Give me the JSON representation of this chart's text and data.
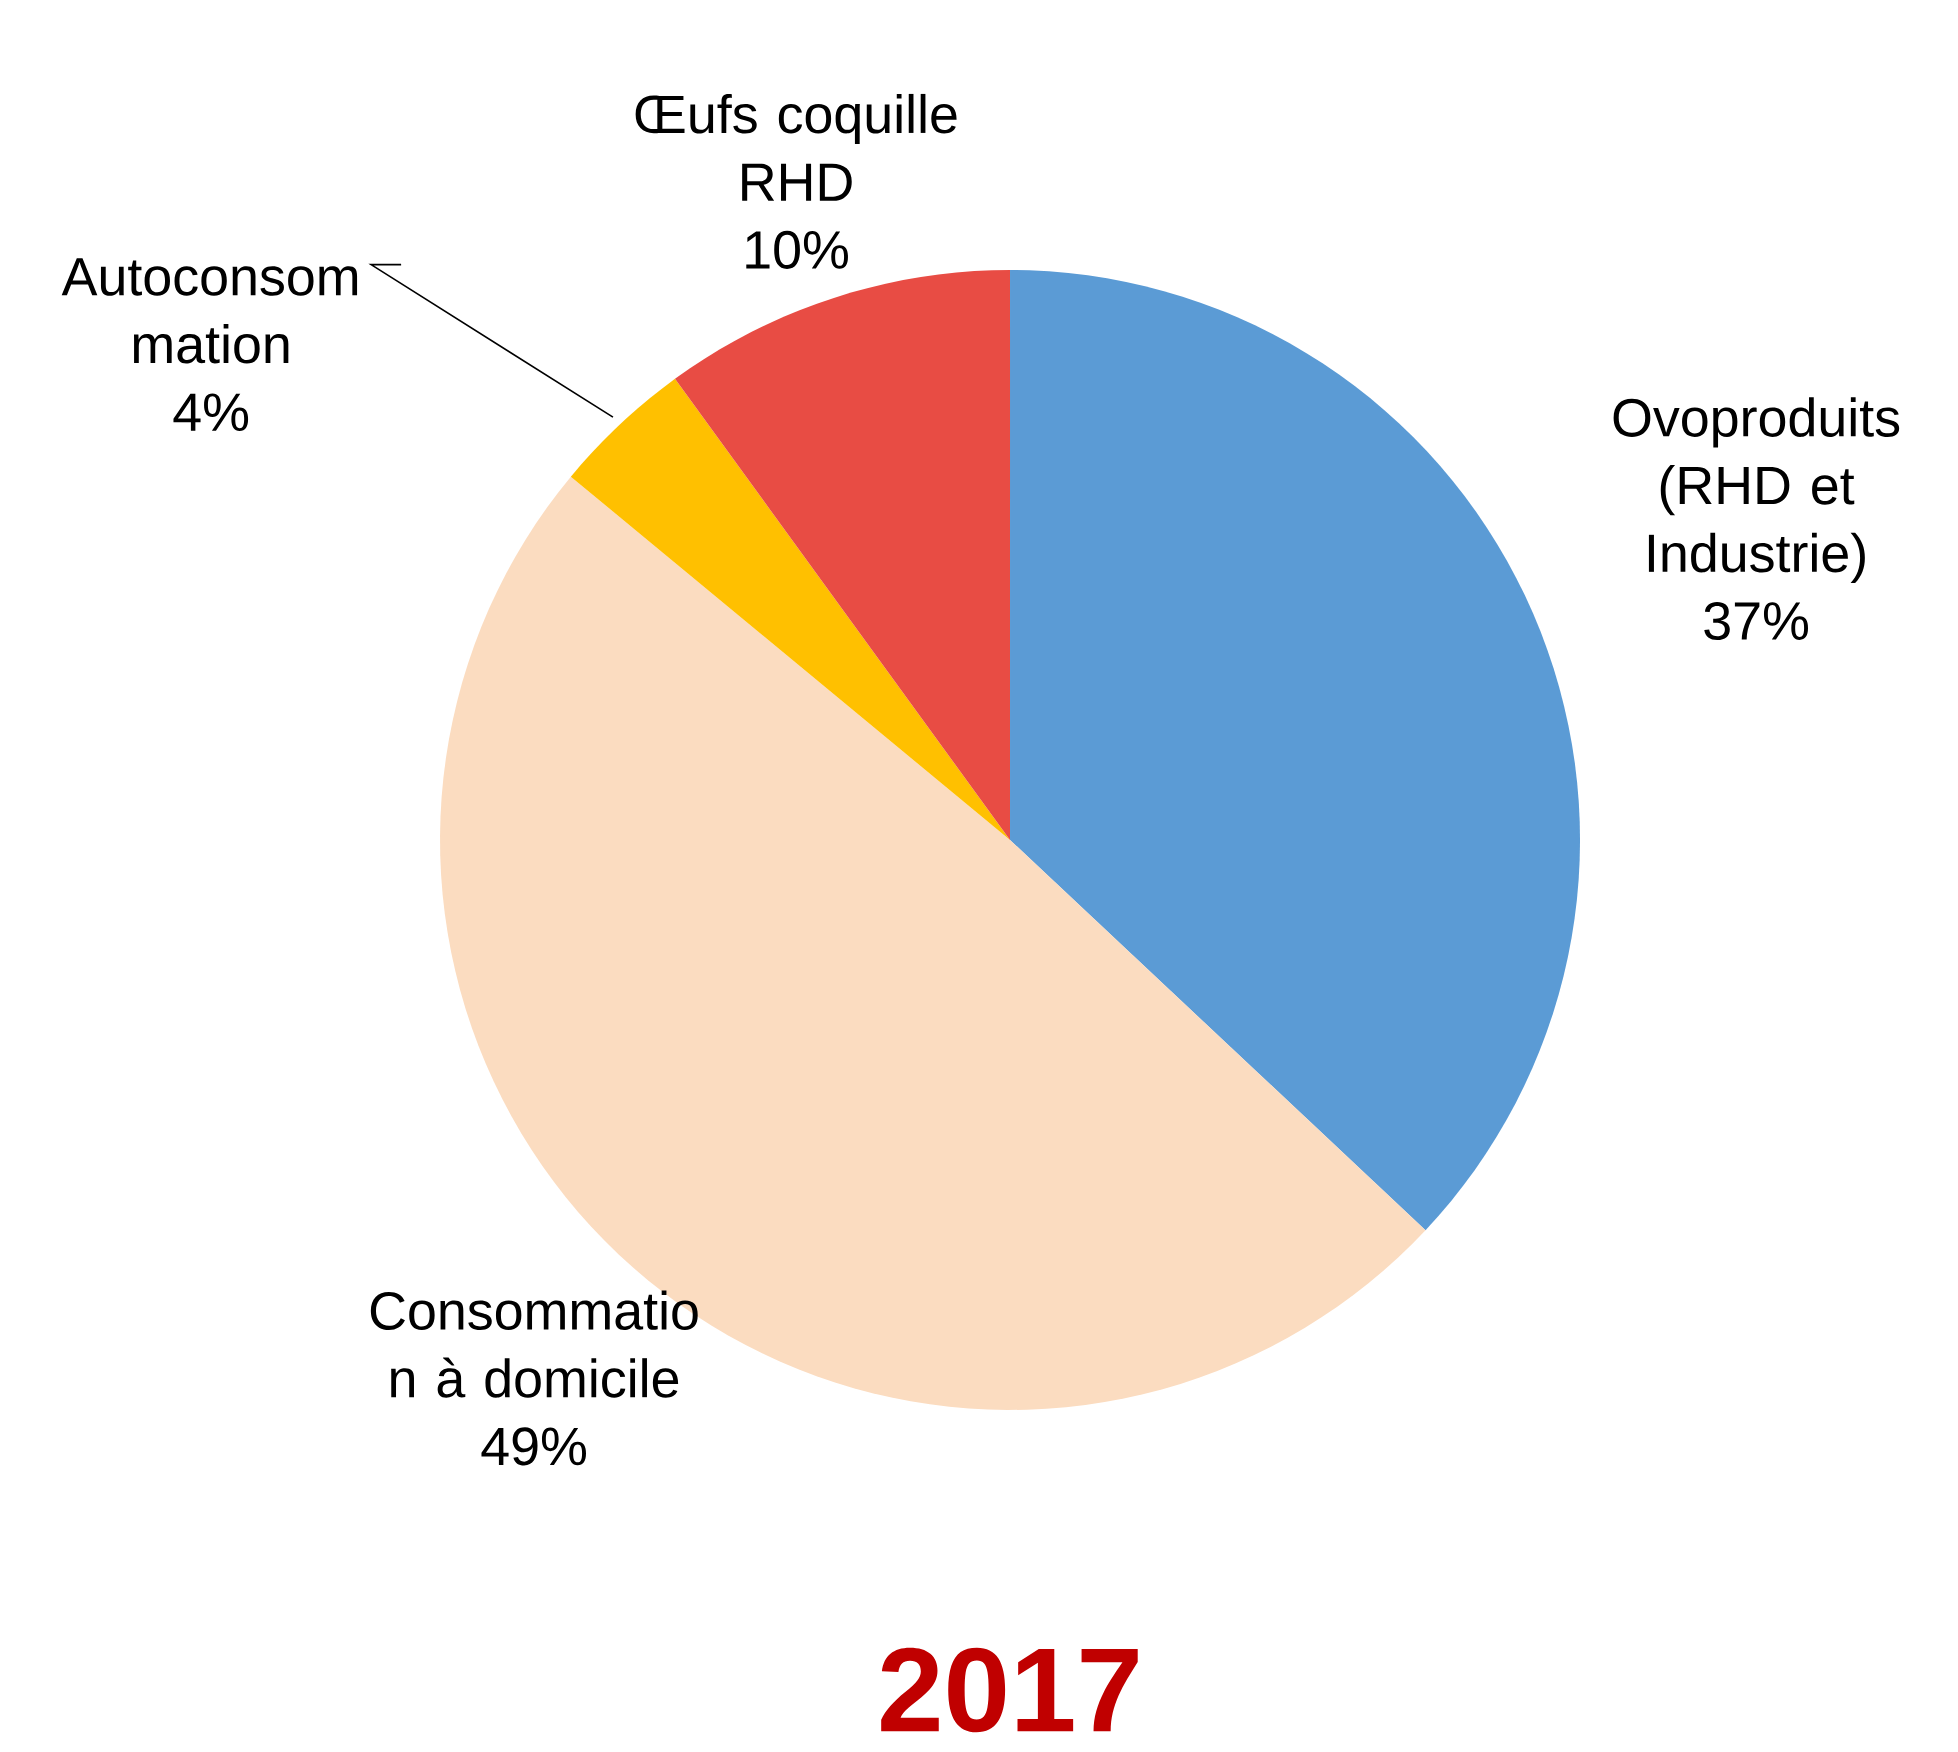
{
  "chart_data": {
    "type": "pie",
    "title": "2017",
    "categories": [
      "Ovoproduits (RHD et Industrie)",
      "Consommatio n à domicile",
      "Autoconsom mation",
      "Œufs coquille RHD"
    ],
    "values": [
      37,
      49,
      4,
      10
    ],
    "value_labels": [
      "37%",
      "49%",
      "4%",
      "10%"
    ],
    "colors": [
      "#5b9bd5",
      "#fbdcc0",
      "#ffc000",
      "#e84c44"
    ]
  }
}
